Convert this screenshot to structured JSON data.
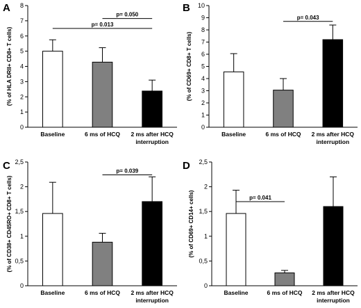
{
  "chart_data": [
    {
      "type": "bar",
      "panel": "A",
      "categories": [
        [
          "Baseline"
        ],
        [
          "6 ms of HCQ"
        ],
        [
          "2 ms after HCQ",
          "interruption"
        ]
      ],
      "values": [
        5.0,
        4.28,
        2.38
      ],
      "errors": [
        0.75,
        0.95,
        0.72
      ],
      "colors": [
        "#ffffff",
        "#808080",
        "#000000"
      ],
      "ylabel": "(% of HLA DRII+ CD8+ T cells)",
      "ylim": [
        0,
        8
      ],
      "yticks": [
        "0",
        "1",
        "2",
        "3",
        "4",
        "5",
        "6",
        "7",
        "8"
      ],
      "grid": false,
      "brackets": [
        {
          "from": 0,
          "to": 2,
          "y": 6.5,
          "label": "p= 0.013"
        },
        {
          "from": 1,
          "to": 2,
          "y": 7.15,
          "label": "p= 0.050"
        }
      ]
    },
    {
      "type": "bar",
      "panel": "B",
      "categories": [
        [
          "Baseline"
        ],
        [
          "6 ms of HCQ"
        ],
        [
          "2 ms after HCQ",
          "interruption"
        ]
      ],
      "values": [
        4.55,
        3.05,
        7.2
      ],
      "errors": [
        1.5,
        0.95,
        1.2
      ],
      "colors": [
        "#ffffff",
        "#808080",
        "#000000"
      ],
      "ylabel": "(% of CD69+ CD8+ T cells)",
      "ylim": [
        0,
        10
      ],
      "yticks": [
        "0",
        "1",
        "2",
        "3",
        "4",
        "5",
        "6",
        "7",
        "8",
        "9",
        "10"
      ],
      "grid": false,
      "brackets": [
        {
          "from": 1,
          "to": 2,
          "y": 8.7,
          "label": "p= 0.043"
        }
      ]
    },
    {
      "type": "bar",
      "panel": "C",
      "categories": [
        [
          "Baseline"
        ],
        [
          "6 ms of HCQ"
        ],
        [
          "2 ms after HCQ",
          "interruption"
        ]
      ],
      "values": [
        1.46,
        0.88,
        1.7
      ],
      "errors": [
        0.63,
        0.18,
        0.5
      ],
      "colors": [
        "#ffffff",
        "#808080",
        "#000000"
      ],
      "ylabel": "(% of CD38+ CD45RO+ CD8+ T cells)",
      "ylim": [
        0,
        2.5
      ],
      "yticks": [
        "0",
        "0,5",
        "1",
        "1,5",
        "2",
        "2,5"
      ],
      "grid": false,
      "brackets": [
        {
          "from": 1,
          "to": 2,
          "y": 2.24,
          "label": "p= 0.039"
        }
      ]
    },
    {
      "type": "bar",
      "panel": "D",
      "categories": [
        [
          "Baseline"
        ],
        [
          "6 ms of HCQ"
        ],
        [
          "2 ms after HCQ",
          "interruption"
        ]
      ],
      "values": [
        1.46,
        0.26,
        1.6
      ],
      "errors": [
        0.47,
        0.05,
        0.6
      ],
      "colors": [
        "#ffffff",
        "#808080",
        "#000000"
      ],
      "ylabel": "(% of CD69+ CD14+ cells)",
      "ylim": [
        0,
        2.5
      ],
      "yticks": [
        "0",
        "0,5",
        "1",
        "1,5",
        "2",
        "2,5"
      ],
      "grid": false,
      "brackets": [
        {
          "from": 0,
          "to": 1,
          "y": 1.7,
          "label": "p= 0.041"
        }
      ]
    }
  ]
}
